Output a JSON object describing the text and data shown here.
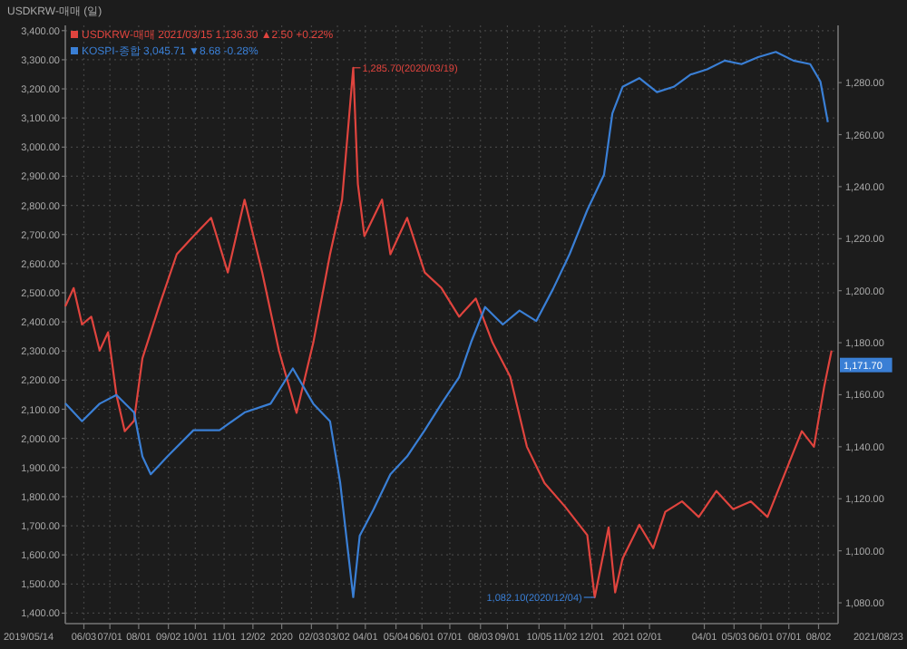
{
  "chart_data": {
    "type": "line",
    "title": "USDKRW-매매 (일)",
    "legend": "top left",
    "grid": true,
    "xlim": [
      "2019-05-14",
      "2021-08-23"
    ],
    "xticks": [
      {
        "value": "2019-06-03",
        "label": "06/03"
      },
      {
        "value": "2019-07-01",
        "label": "07/01"
      },
      {
        "value": "2019-08-01",
        "label": "08/01"
      },
      {
        "value": "2019-09-02",
        "label": "09/02"
      },
      {
        "value": "2019-10-01",
        "label": "10/01"
      },
      {
        "value": "2019-11-01",
        "label": "11/01"
      },
      {
        "value": "2019-12-02",
        "label": "12/02"
      },
      {
        "value": "2020-01-02",
        "label": "2020"
      },
      {
        "value": "2020-02-03",
        "label": "02/03"
      },
      {
        "value": "2020-03-02",
        "label": "03/02"
      },
      {
        "value": "2020-04-01",
        "label": "04/01"
      },
      {
        "value": "2020-05-04",
        "label": "05/04"
      },
      {
        "value": "2020-06-01",
        "label": "06/01"
      },
      {
        "value": "2020-07-01",
        "label": "07/01"
      },
      {
        "value": "2020-08-03",
        "label": "08/03"
      },
      {
        "value": "2020-09-01",
        "label": "09/01"
      },
      {
        "value": "2020-10-05",
        "label": "10/05"
      },
      {
        "value": "2020-11-02",
        "label": "11/02"
      },
      {
        "value": "2020-12-01",
        "label": "12/01"
      },
      {
        "value": "2021-01-04",
        "label": "2021"
      },
      {
        "value": "2021-02-01",
        "label": "02/01"
      },
      {
        "value": "2021-04-01",
        "label": "04/01"
      },
      {
        "value": "2021-05-03",
        "label": "05/03"
      },
      {
        "value": "2021-06-01",
        "label": "06/01"
      },
      {
        "value": "2021-07-01",
        "label": "07/01"
      },
      {
        "value": "2021-08-02",
        "label": "08/02"
      }
    ],
    "ylim": [
      1364,
      3418
    ],
    "yticks": [
      {
        "value": 1400,
        "label": "1,400.00"
      },
      {
        "value": 1500,
        "label": "1,500.00"
      },
      {
        "value": 1600,
        "label": "1,600.00"
      },
      {
        "value": 1700,
        "label": "1,700.00"
      },
      {
        "value": 1800,
        "label": "1,800.00"
      },
      {
        "value": 1900,
        "label": "1,900.00"
      },
      {
        "value": 2000,
        "label": "2,000.00"
      },
      {
        "value": 2100,
        "label": "2,100.00"
      },
      {
        "value": 2200,
        "label": "2,200.00"
      },
      {
        "value": 2300,
        "label": "2,300.00"
      },
      {
        "value": 2400,
        "label": "2,400.00"
      },
      {
        "value": 2500,
        "label": "2,500.00"
      },
      {
        "value": 2600,
        "label": "2,600.00"
      },
      {
        "value": 2700,
        "label": "2,700.00"
      },
      {
        "value": 2800,
        "label": "2,800.00"
      },
      {
        "value": 2900,
        "label": "2,900.00"
      },
      {
        "value": 3000,
        "label": "3,000.00"
      },
      {
        "value": 3100,
        "label": "3,100.00"
      },
      {
        "value": 3200,
        "label": "3,200.00"
      },
      {
        "value": 3300,
        "label": "3,300.00"
      },
      {
        "value": 3400,
        "label": "3,400.00"
      }
    ],
    "y2lim": [
      1072,
      1302
    ],
    "y2ticks": [
      {
        "value": 1080,
        "label": "1,080.00"
      },
      {
        "value": 1100,
        "label": "1,100.00"
      },
      {
        "value": 1120,
        "label": "1,120.00"
      },
      {
        "value": 1140,
        "label": "1,140.00"
      },
      {
        "value": 1160,
        "label": "1,160.00"
      },
      {
        "value": 1180,
        "label": "1,180.00"
      },
      {
        "value": 1200,
        "label": "1,200.00"
      },
      {
        "value": 1220,
        "label": "1,220.00"
      },
      {
        "value": 1240,
        "label": "1,240.00"
      },
      {
        "value": 1260,
        "label": "1,260.00"
      },
      {
        "value": 1280,
        "label": "1,280.00"
      }
    ],
    "annotations": [
      "2019/05/14",
      "2021/08/23",
      "1,285.70(2020/03/19)",
      "1,082.10(2020/12/04)",
      "1,171.70"
    ],
    "series": [
      {
        "name": "USDKRW-매매 2021/03/15 1,136.30 ▲2.50 +0.22%",
        "color": "#e0443e",
        "axis": "y2",
        "x": [
          "2019-05-14",
          "2019-05-23",
          "2019-06-01",
          "2019-06-11",
          "2019-06-20",
          "2019-06-29",
          "2019-07-08",
          "2019-07-17",
          "2019-07-27",
          "2019-08-05",
          "2019-08-23",
          "2019-09-11",
          "2019-09-29",
          "2019-10-18",
          "2019-11-05",
          "2019-11-23",
          "2019-12-12",
          "2019-12-30",
          "2020-01-18",
          "2020-02-05",
          "2020-02-23",
          "2020-03-07",
          "2020-03-19",
          "2020-03-24",
          "2020-03-31",
          "2020-04-19",
          "2020-04-28",
          "2020-05-16",
          "2020-06-04",
          "2020-06-22",
          "2020-07-11",
          "2020-07-29",
          "2020-08-16",
          "2020-09-04",
          "2020-09-22",
          "2020-10-11",
          "2020-11-02",
          "2020-11-26",
          "2020-12-04",
          "2020-12-19",
          "2020-12-26",
          "2021-01-03",
          "2021-01-21",
          "2021-02-05",
          "2021-02-18",
          "2021-03-08",
          "2021-03-26",
          "2021-04-14",
          "2021-05-02",
          "2021-05-21",
          "2021-06-08",
          "2021-06-27",
          "2021-07-15",
          "2021-07-28",
          "2021-08-08",
          "2021-08-16"
        ],
        "values": [
          1194,
          1201,
          1187,
          1190,
          1177,
          1184,
          1160,
          1146,
          1150,
          1174,
          1194,
          1214,
          1221,
          1228,
          1207,
          1235,
          1207,
          1177,
          1153,
          1180,
          1214,
          1235,
          1285.7,
          1241,
          1221,
          1235,
          1214,
          1228,
          1207,
          1201,
          1190,
          1197,
          1180,
          1167,
          1140,
          1126,
          1117,
          1106,
          1082.1,
          1109,
          1084,
          1097,
          1110,
          1101,
          1115,
          1119,
          1113,
          1123,
          1116,
          1119,
          1113,
          1130,
          1146,
          1140,
          1163,
          1177
        ]
      },
      {
        "name": "KOSPI-종합 3,045.71 ▼8.68 -0.28%",
        "color": "#3a7fd5",
        "x": [
          "2019-05-14",
          "2019-06-01",
          "2019-06-20",
          "2019-07-08",
          "2019-07-27",
          "2019-08-05",
          "2019-08-14",
          "2019-09-01",
          "2019-09-29",
          "2019-10-27",
          "2019-11-23",
          "2019-12-21",
          "2020-01-14",
          "2020-02-05",
          "2020-02-23",
          "2020-03-05",
          "2020-03-19",
          "2020-03-26",
          "2020-04-10",
          "2020-04-28",
          "2020-05-16",
          "2020-06-04",
          "2020-06-22",
          "2020-07-11",
          "2020-07-24",
          "2020-08-08",
          "2020-08-27",
          "2020-09-14",
          "2020-10-02",
          "2020-10-20",
          "2020-11-07",
          "2020-11-26",
          "2020-12-14",
          "2020-12-23",
          "2021-01-03",
          "2021-01-21",
          "2021-02-09",
          "2021-02-27",
          "2021-03-17",
          "2021-04-04",
          "2021-04-23",
          "2021-05-11",
          "2021-05-29",
          "2021-06-17",
          "2021-07-06",
          "2021-07-24",
          "2021-08-04",
          "2021-08-12"
        ],
        "values": [
          2120,
          2059,
          2119,
          2149,
          2089,
          1938,
          1877,
          1938,
          2028,
          2028,
          2089,
          2119,
          2240,
          2119,
          2059,
          1847,
          1455,
          1666,
          1757,
          1877,
          1938,
          2028,
          2119,
          2210,
          2331,
          2451,
          2391,
          2439,
          2403,
          2512,
          2633,
          2784,
          2905,
          3116,
          3207,
          3237,
          3189,
          3207,
          3249,
          3267,
          3297,
          3285,
          3309,
          3327,
          3297,
          3285,
          3225,
          3086
        ]
      }
    ]
  }
}
